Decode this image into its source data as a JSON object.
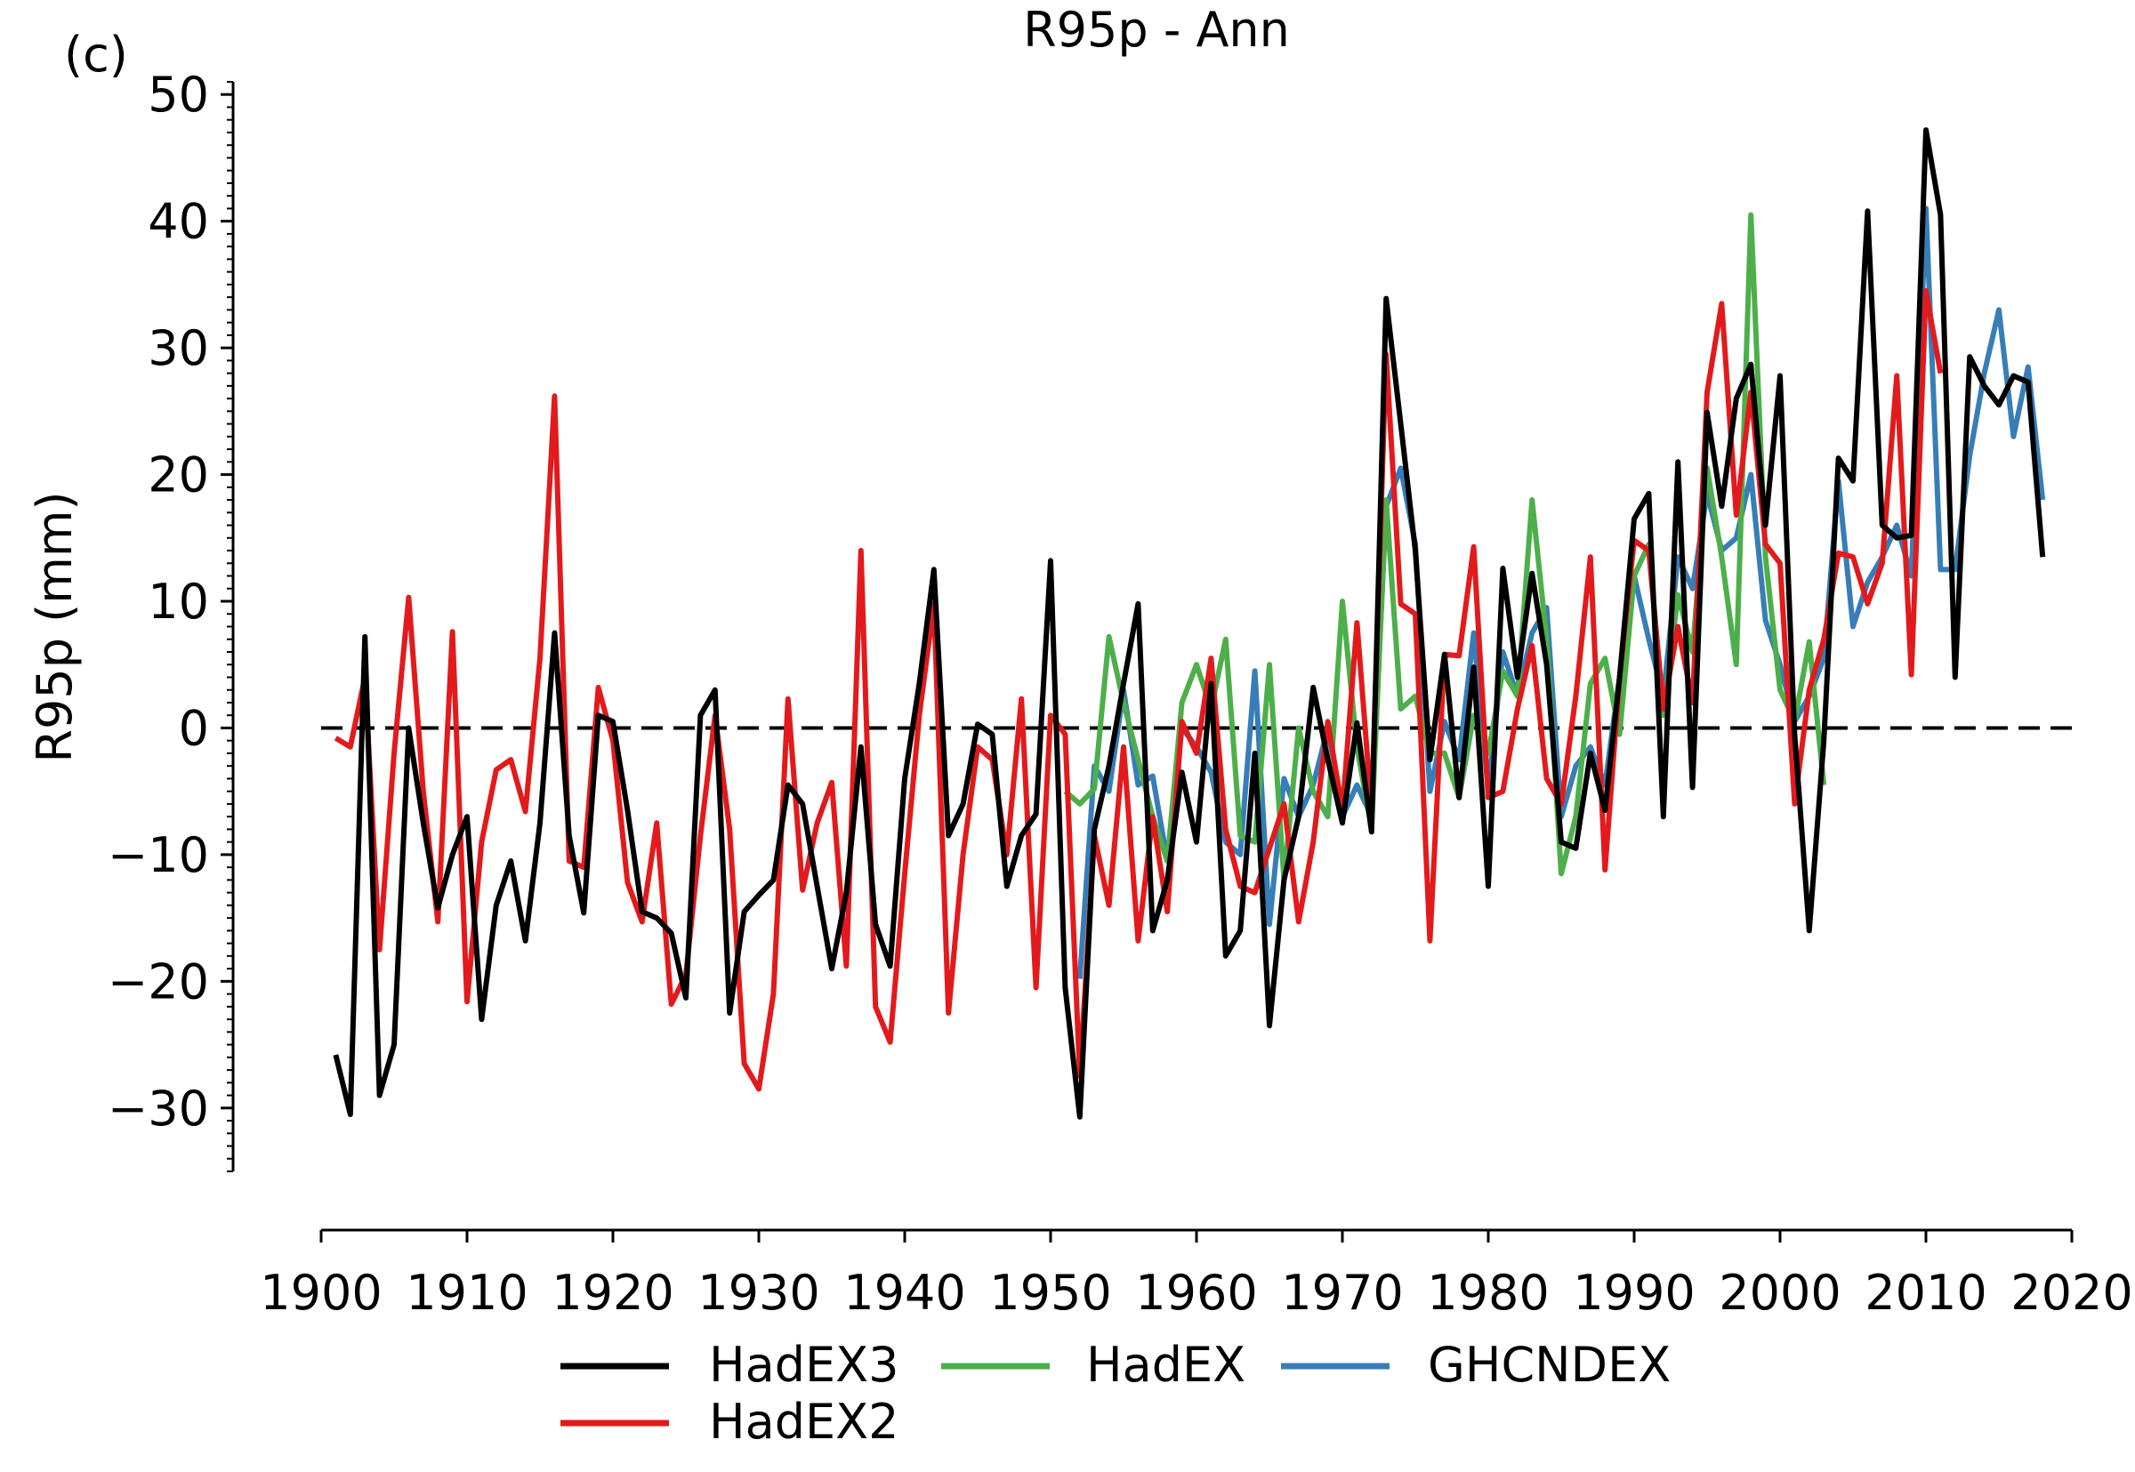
{
  "panel_label": "(c)",
  "chart_data": {
    "type": "line",
    "title": "R95p - Ann",
    "xlabel": "",
    "ylabel": "R95p (mm)",
    "xlim": [
      1900,
      2020
    ],
    "ylim": [
      -35,
      51
    ],
    "x_ticks": [
      1900,
      1910,
      1920,
      1930,
      1940,
      1950,
      1960,
      1970,
      1980,
      1990,
      2000,
      2010,
      2020
    ],
    "x_tick_labels": [
      "1900",
      "1910",
      "1920",
      "1930",
      "1940",
      "1950",
      "1960",
      "1970",
      "1980",
      "1990",
      "2000",
      "2010",
      "2020"
    ],
    "y_ticks": [
      -30,
      -20,
      -10,
      0,
      10,
      20,
      30,
      40,
      50
    ],
    "y_tick_labels": [
      "−30",
      "−20",
      "−10",
      "0",
      "10",
      "20",
      "30",
      "40",
      "50"
    ],
    "reference_line": {
      "y": 0,
      "style": "dashed",
      "color": "#000000"
    },
    "grid": false,
    "legend_position": "bottom",
    "series": [
      {
        "name": "HadEX3",
        "color": "#000000",
        "start_year": 1901,
        "values": [
          -25.8,
          -30.5,
          7.2,
          -29.0,
          -25.0,
          0.0,
          -7.5,
          -14.2,
          -10.0,
          -7.0,
          -23.0,
          -14.0,
          -10.5,
          -16.8,
          -7.5,
          7.5,
          -8.5,
          -14.6,
          1.0,
          0.5,
          -6.5,
          -14.5,
          -15.0,
          -16.2,
          -21.3,
          1.0,
          3.0,
          -22.5,
          -14.5,
          -13.2,
          -12.0,
          -4.5,
          -6.0,
          -12.5,
          -19.0,
          -13.0,
          -1.5,
          -15.5,
          -18.8,
          -4.0,
          3.5,
          12.5,
          -8.5,
          -6.0,
          0.3,
          -0.5,
          -12.5,
          -8.5,
          -6.8,
          13.2,
          -20.5,
          -30.7,
          -8.0,
          -3.0,
          3.5,
          9.8,
          -16.0,
          -12.0,
          -3.5,
          -9.0,
          3.5,
          -18.0,
          -16.0,
          -2.0,
          -23.5,
          -12.0,
          -7.0,
          3.2,
          -2.5,
          -7.5,
          0.4,
          -8.2,
          33.9,
          24.0,
          14.0,
          -2.5,
          5.8,
          -5.5,
          4.8,
          -12.5,
          12.6,
          4.0,
          12.2,
          5.0,
          -9.0,
          -9.5,
          -2.0,
          -6.5,
          4.0,
          16.5,
          18.5,
          -7.0,
          21.0,
          -4.7,
          24.9,
          17.5,
          26.0,
          28.7,
          16.0,
          27.8,
          -0.5,
          -16.0,
          -1.0,
          21.3,
          19.5,
          40.8,
          16.0,
          15.0,
          15.2,
          47.2,
          40.5,
          4.0,
          29.3,
          27.0,
          25.5,
          27.8,
          27.3,
          13.5
        ]
      },
      {
        "name": "HadEX2",
        "color": "#e31a1c",
        "start_year": 1901,
        "values": [
          -0.8,
          -1.5,
          4.0,
          -17.5,
          -2.0,
          10.3,
          -5.0,
          -15.3,
          7.6,
          -21.6,
          -9.0,
          -3.3,
          -2.5,
          -6.6,
          5.5,
          26.2,
          -10.5,
          -11.0,
          3.2,
          -1.0,
          -12.2,
          -15.3,
          -7.5,
          -21.8,
          -19.5,
          -8.5,
          1.0,
          -8.0,
          -26.5,
          -28.5,
          -21.0,
          2.3,
          -12.8,
          -7.5,
          -4.3,
          -18.8,
          14.0,
          -22.0,
          -24.8,
          -11.5,
          1.0,
          9.8,
          -22.5,
          -10.0,
          -1.5,
          -2.5,
          -10.0,
          2.3,
          -20.5,
          1.0,
          -0.5,
          -27.5,
          -8.5,
          -14.0,
          -1.5,
          -16.8,
          -7.0,
          -14.5,
          0.5,
          -2.0,
          5.5,
          -8.0,
          -12.5,
          -13.0,
          -9.5,
          -6.0,
          -15.3,
          -9.0,
          0.5,
          -6.5,
          8.3,
          -6.5,
          29.5,
          9.8,
          9.0,
          -16.8,
          5.8,
          5.7,
          14.3,
          -5.5,
          -5.0,
          1.5,
          6.5,
          -4.0,
          -6.0,
          2.5,
          13.5,
          -11.2,
          4.0,
          14.8,
          14.0,
          1.5,
          8.0,
          2.0,
          26.5,
          33.5,
          16.8,
          26.5,
          14.5,
          13.0,
          -6.0,
          3.0,
          7.0,
          13.8,
          13.5,
          9.8,
          13.0,
          27.8,
          4.2,
          34.5,
          28.0
        ]
      },
      {
        "name": "HadEX",
        "color": "#4daf4a",
        "start_year": 1951,
        "values": [
          -5.0,
          -6.0,
          -4.8,
          7.2,
          2.0,
          -2.5,
          -7.0,
          -10.5,
          2.0,
          5.0,
          1.5,
          7.0,
          -8.5,
          -9.0,
          5.0,
          -12.0,
          0.0,
          -5.0,
          -7.0,
          10.0,
          -1.5,
          -8.0,
          18.0,
          1.5,
          2.5,
          -2.0,
          -2.0,
          -5.5,
          1.0,
          -2.0,
          4.5,
          2.5,
          18.0,
          7.0,
          -11.5,
          -7.0,
          3.5,
          5.5,
          -0.5,
          12.0,
          14.5,
          1.0,
          10.5,
          6.0,
          20.5,
          13.5,
          5.0,
          40.5,
          13.5,
          3.0,
          0.5,
          6.8,
          -4.5
        ]
      },
      {
        "name": "GHCNDEX",
        "color": "#377eb8",
        "start_year": 1951,
        "values": [
          null,
          -19.8,
          -3.0,
          -5.0,
          3.0,
          -4.5,
          -3.8,
          -10.5,
          0.0,
          -1.5,
          -3.5,
          -9.0,
          -10.0,
          4.5,
          -15.5,
          -4.0,
          -7.0,
          -4.5,
          0.0,
          -7.0,
          -4.5,
          -7.0,
          17.5,
          20.5,
          14.5,
          -5.0,
          0.5,
          -2.5,
          7.5,
          -5.0,
          6.0,
          2.5,
          7.5,
          9.5,
          -7.0,
          -3.0,
          -1.5,
          -4.5,
          4.0,
          12.0,
          7.0,
          2.5,
          13.5,
          11.0,
          18.5,
          14.0,
          15.0,
          20.0,
          8.5,
          5.0,
          0.5,
          2.5,
          5.5,
          19.5,
          8.0,
          11.5,
          13.5,
          16.0,
          12.0,
          41.0,
          12.5,
          12.5,
          21.5,
          28.0,
          33.0,
          23.0,
          28.5,
          18.0
        ]
      }
    ]
  }
}
